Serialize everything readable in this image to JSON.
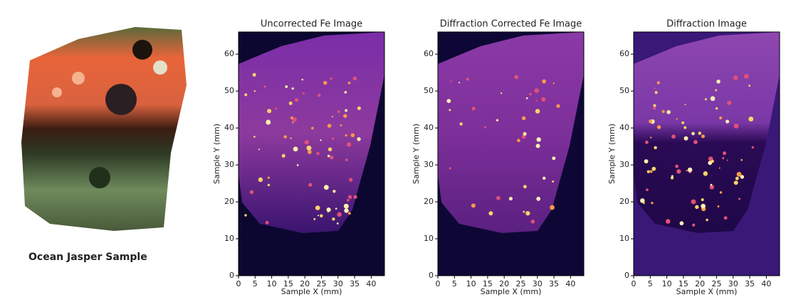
{
  "sample": {
    "label": "Ocean Jasper Sample"
  },
  "panels": [
    {
      "title": "Uncorrected Fe Image",
      "xlabel": "Sample X (mm)",
      "ylabel": "Sample Y (mm)",
      "xlim": [
        0,
        44
      ],
      "ylim": [
        0,
        66
      ],
      "xticks": [
        0,
        5,
        10,
        15,
        20,
        25,
        30,
        35,
        40
      ],
      "yticks": [
        0,
        10,
        20,
        30,
        40,
        50,
        60
      ]
    },
    {
      "title": "Diffraction Corrected Fe Image",
      "xlabel": "Sample X (mm)",
      "ylabel": "Sample Y (mm)",
      "xlim": [
        0,
        44
      ],
      "ylim": [
        0,
        66
      ],
      "xticks": [
        0,
        5,
        10,
        15,
        20,
        25,
        30,
        35,
        40
      ],
      "yticks": [
        0,
        10,
        20,
        30,
        40,
        50,
        60
      ]
    },
    {
      "title": "Diffraction Image",
      "xlabel": "Sample X (mm)",
      "ylabel": "Sample Y (mm)",
      "xlim": [
        0,
        44
      ],
      "ylim": [
        0,
        66
      ],
      "xticks": [
        0,
        5,
        10,
        15,
        20,
        25,
        30,
        35,
        40
      ],
      "yticks": [
        0,
        10,
        20,
        30,
        40,
        50,
        60
      ]
    }
  ]
}
